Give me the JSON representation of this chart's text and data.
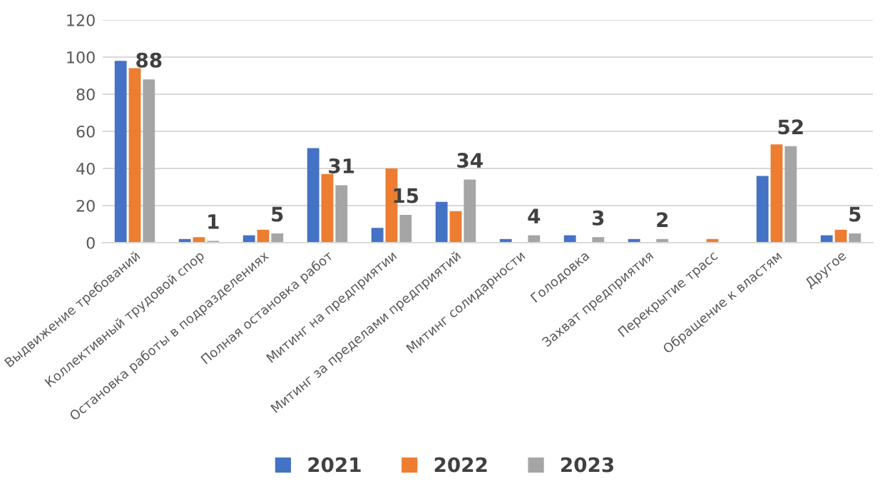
{
  "chart_data": {
    "type": "bar",
    "categories": [
      "Выдвижение требований",
      "Коллективный трудовой спор",
      "Остановка работы в подразделениях",
      "Полная остановка работ",
      "Митинг на предприятии",
      "Митинг за пределами предприятий",
      "Митинг солидарности",
      "Голодовка",
      "Захват предприятия",
      "Перекрытие трасс",
      "Обращение к властям",
      "Другое"
    ],
    "series": [
      {
        "name": "2021",
        "color": "#4472c4",
        "values": [
          98,
          2,
          4,
          51,
          8,
          22,
          2,
          4,
          2,
          0,
          36,
          4
        ]
      },
      {
        "name": "2022",
        "color": "#ed7d31",
        "values": [
          94,
          3,
          7,
          37,
          40,
          17,
          0,
          0,
          0,
          2,
          53,
          7
        ]
      },
      {
        "name": "2023",
        "color": "#a5a5a5",
        "values": [
          88,
          1,
          5,
          31,
          15,
          34,
          4,
          3,
          2,
          0,
          52,
          5
        ],
        "value_labels": [
          "88",
          "1",
          "5",
          "31",
          "15",
          "34",
          "4",
          "3",
          "2",
          null,
          "52",
          "5"
        ]
      }
    ],
    "ylim": [
      0,
      120
    ],
    "yticks": [
      0,
      20,
      40,
      60,
      80,
      100,
      120
    ],
    "grid": "y",
    "legend": "bottom"
  }
}
